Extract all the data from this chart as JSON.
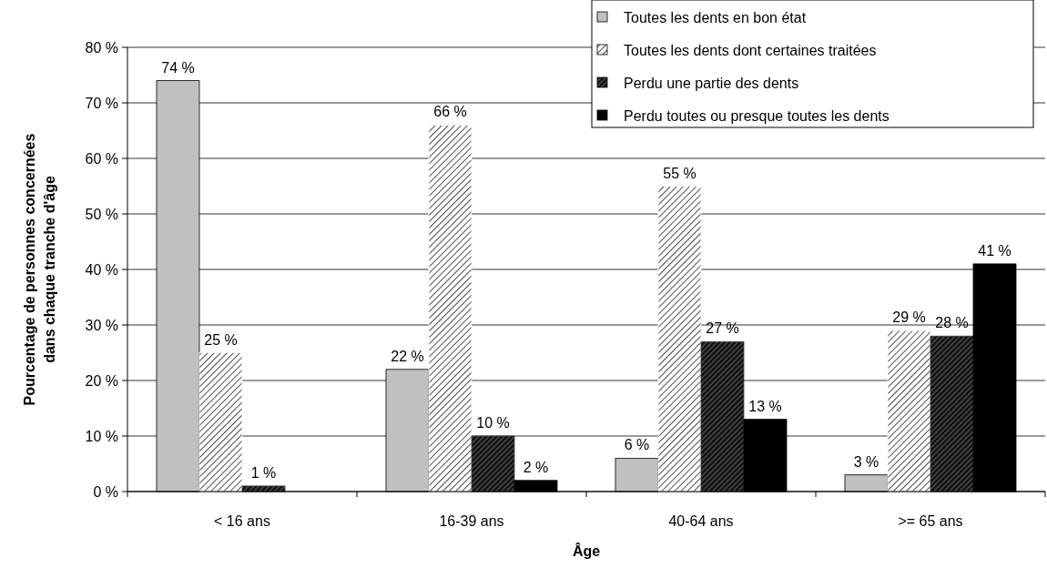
{
  "chart_data": {
    "type": "bar",
    "xlabel": "Âge",
    "ylabel": "Pourcentage de personnes concernées dans chaque tranche d'âge",
    "categories": [
      "< 16 ans",
      "16-39 ans",
      "40-64 ans",
      ">= 65 ans"
    ],
    "series": [
      {
        "name": "Toutes les dents en bon état",
        "color": "#c0c0c0",
        "values": [
          74,
          22,
          6,
          3
        ],
        "value_labels": [
          "74 %",
          "22 %",
          "6 %",
          "3 %"
        ]
      },
      {
        "name": "Toutes les dents dont certaines traitées",
        "color": "#ffffff",
        "values": [
          25,
          66,
          55,
          29
        ],
        "value_labels": [
          "25 %",
          "66 %",
          "55 %",
          "29 %"
        ]
      },
      {
        "name": "Perdu une partie des dents",
        "color": "#404040",
        "values": [
          1,
          10,
          27,
          28
        ],
        "value_labels": [
          "1 %",
          "10 %",
          "27 %",
          "28 %"
        ]
      },
      {
        "name": "Perdu toutes ou presque toutes les dents",
        "color": "#000000",
        "values": [
          null,
          2,
          13,
          41
        ],
        "value_labels": [
          null,
          "2 %",
          "13 %",
          "41 %"
        ]
      }
    ],
    "ylim": [
      0,
      80
    ],
    "yticks": [
      {
        "value": 0,
        "label": "0 %"
      },
      {
        "value": 10,
        "label": "10 %"
      },
      {
        "value": 20,
        "label": "20 %"
      },
      {
        "value": 30,
        "label": "30 %"
      },
      {
        "value": 40,
        "label": "40 %"
      },
      {
        "value": 50,
        "label": "50 %"
      },
      {
        "value": 60,
        "label": "60 %"
      },
      {
        "value": 70,
        "label": "70 %"
      },
      {
        "value": 80,
        "label": "80 %"
      }
    ],
    "grid": "y",
    "legend": "top right"
  }
}
